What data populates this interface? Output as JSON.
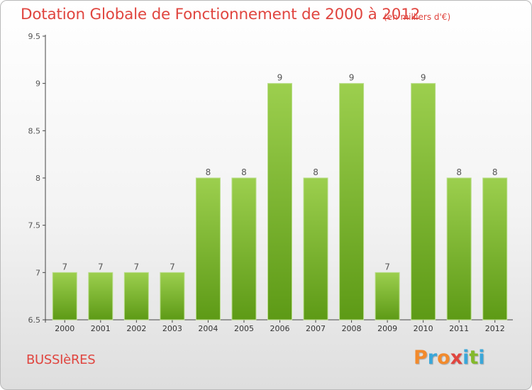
{
  "title": "Dotation Globale de Fonctionnement de 2000 à 2012",
  "unit_note": "(en milliers d'€)",
  "commune": "BUSSIèRES",
  "logo_text": "Proxiti",
  "colors": {
    "title": "#e0453f",
    "bar_top": "#9ccf4e",
    "bar_bottom": "#5d9a16",
    "logo": [
      "#f28a2c",
      "#3aa7d9",
      "#f28a2c",
      "#e0453f",
      "#3aa7d9",
      "#84b92c",
      "#3aa7d9"
    ]
  },
  "chart_data": {
    "type": "bar",
    "title": "Dotation Globale de Fonctionnement de 2000 à 2012",
    "categories": [
      "2000",
      "2001",
      "2002",
      "2003",
      "2004",
      "2005",
      "2006",
      "2007",
      "2008",
      "2009",
      "2010",
      "2011",
      "2012"
    ],
    "values": [
      7,
      7,
      7,
      7,
      8,
      8,
      9,
      8,
      9,
      7,
      9,
      8,
      8
    ],
    "data_labels": [
      "7",
      "7",
      "7",
      "7",
      "8",
      "8",
      "9",
      "8",
      "9",
      "7",
      "9",
      "8",
      "8"
    ],
    "ylim": [
      6.5,
      9.5
    ],
    "yticks": [
      "6.5",
      "7",
      "7.5",
      "8",
      "8.5",
      "9",
      "9.5"
    ],
    "grid": false,
    "legend": "none"
  }
}
